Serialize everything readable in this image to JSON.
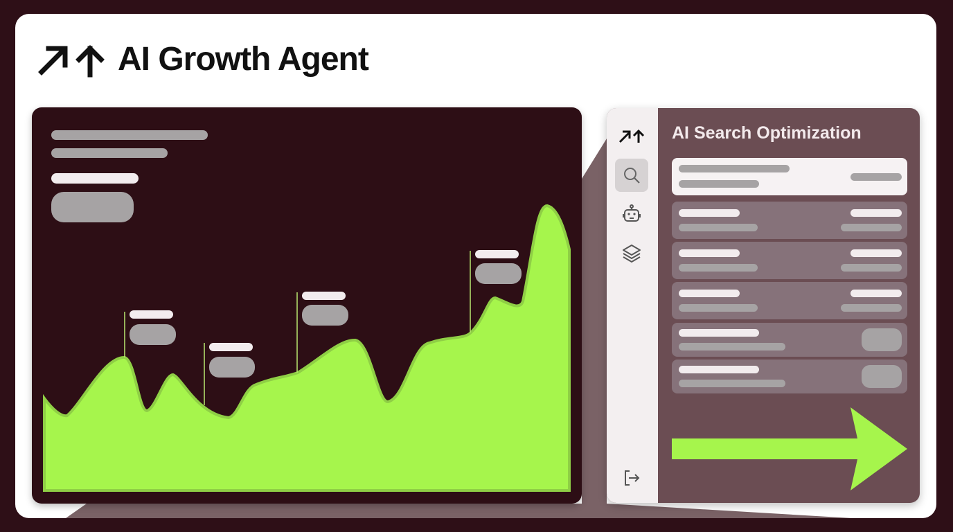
{
  "header": {
    "title": "AI Growth Agent",
    "logo_icon": "growth-arrows-icon"
  },
  "right_panel": {
    "title": "AI Search Optimization",
    "sidebar_icons": [
      "growth-arrows-icon",
      "search-icon",
      "robot-icon",
      "layers-icon",
      "logout-icon"
    ],
    "active_sidebar_item": "search"
  },
  "colors": {
    "background": "#2e0f17",
    "accent_green": "#a6f54c",
    "panel_dark": "#2d0e15",
    "panel_mauve": "#6b4d53"
  }
}
